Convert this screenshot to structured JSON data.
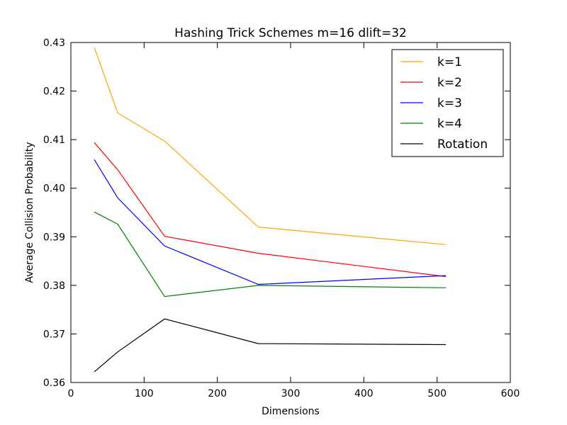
{
  "chart_data": {
    "type": "line",
    "title": "Hashing Trick Schemes m=16 dlift=32",
    "xlabel": "Dimensions",
    "ylabel": "Average Collision Probability",
    "xlim": [
      0,
      600
    ],
    "ylim": [
      0.36,
      0.43
    ],
    "xticks": [
      0,
      100,
      200,
      300,
      400,
      500,
      600
    ],
    "xtick_labels": [
      "0",
      "100",
      "200",
      "300",
      "400",
      "500",
      "600"
    ],
    "yticks": [
      0.36,
      0.37,
      0.38,
      0.39,
      0.4,
      0.41,
      0.42,
      0.43
    ],
    "ytick_labels": [
      "0.36",
      "0.37",
      "0.38",
      "0.39",
      "0.40",
      "0.41",
      "0.42",
      "0.43"
    ],
    "grid": false,
    "legend_position": "top-right",
    "x": [
      32,
      64,
      128,
      256,
      512
    ],
    "series": [
      {
        "name": "k=1",
        "color": "#ffa500",
        "values": [
          0.429,
          0.4155,
          0.4097,
          0.392,
          0.3884
        ]
      },
      {
        "name": "k=2",
        "color": "#ff0000",
        "values": [
          0.4094,
          0.4038,
          0.3901,
          0.3866,
          0.3818
        ]
      },
      {
        "name": "k=3",
        "color": "#0000ff",
        "values": [
          0.4059,
          0.398,
          0.3881,
          0.3802,
          0.382
        ]
      },
      {
        "name": "k=4",
        "color": "#008000",
        "values": [
          0.3951,
          0.3926,
          0.3777,
          0.38,
          0.3795
        ]
      },
      {
        "name": "Rotation",
        "color": "#000000",
        "values": [
          0.3622,
          0.3663,
          0.3731,
          0.368,
          0.3678
        ]
      }
    ]
  }
}
